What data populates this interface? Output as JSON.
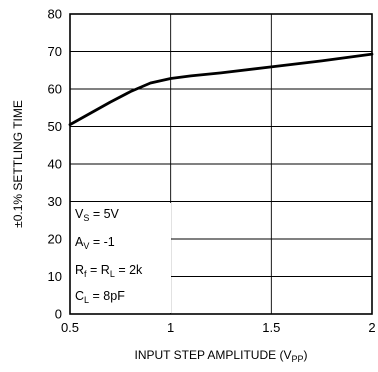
{
  "chart_data": {
    "type": "line",
    "xlabel": {
      "main": "INPUT STEP AMPLITUDE (V",
      "sub": "PP",
      "close": ")"
    },
    "ylabel": "±0.1% SETTLING TIME",
    "xlim": [
      0.5,
      2
    ],
    "ylim": [
      0,
      80
    ],
    "x_ticks": [
      0.5,
      1,
      1.5,
      2
    ],
    "x_tick_labels": [
      "0.5",
      "1",
      "1.5",
      "2"
    ],
    "y_ticks": [
      0,
      10,
      20,
      30,
      40,
      50,
      60,
      70,
      80
    ],
    "y_tick_labels": [
      "0",
      "10",
      "20",
      "30",
      "40",
      "50",
      "60",
      "70",
      "80"
    ],
    "grid": true,
    "series": [
      {
        "x": [
          0.5,
          0.6,
          0.7,
          0.8,
          0.9,
          1.0,
          1.1,
          1.25,
          1.5,
          1.75,
          2.0
        ],
        "y": [
          50.5,
          53.5,
          56.5,
          59.3,
          61.6,
          62.8,
          63.5,
          64.3,
          65.9,
          67.5,
          69.3
        ]
      }
    ],
    "annotations": [
      {
        "main": "V",
        "sub": "S",
        "rest": " = 5V"
      },
      {
        "main": "A",
        "sub": "V",
        "rest": " =  -1"
      },
      {
        "main": "R",
        "sub": "f",
        "mid": " = R",
        "sub2": "L",
        "rest": " = 2k"
      },
      {
        "main": "C",
        "sub": "L",
        "rest": " = 8pF"
      }
    ]
  }
}
